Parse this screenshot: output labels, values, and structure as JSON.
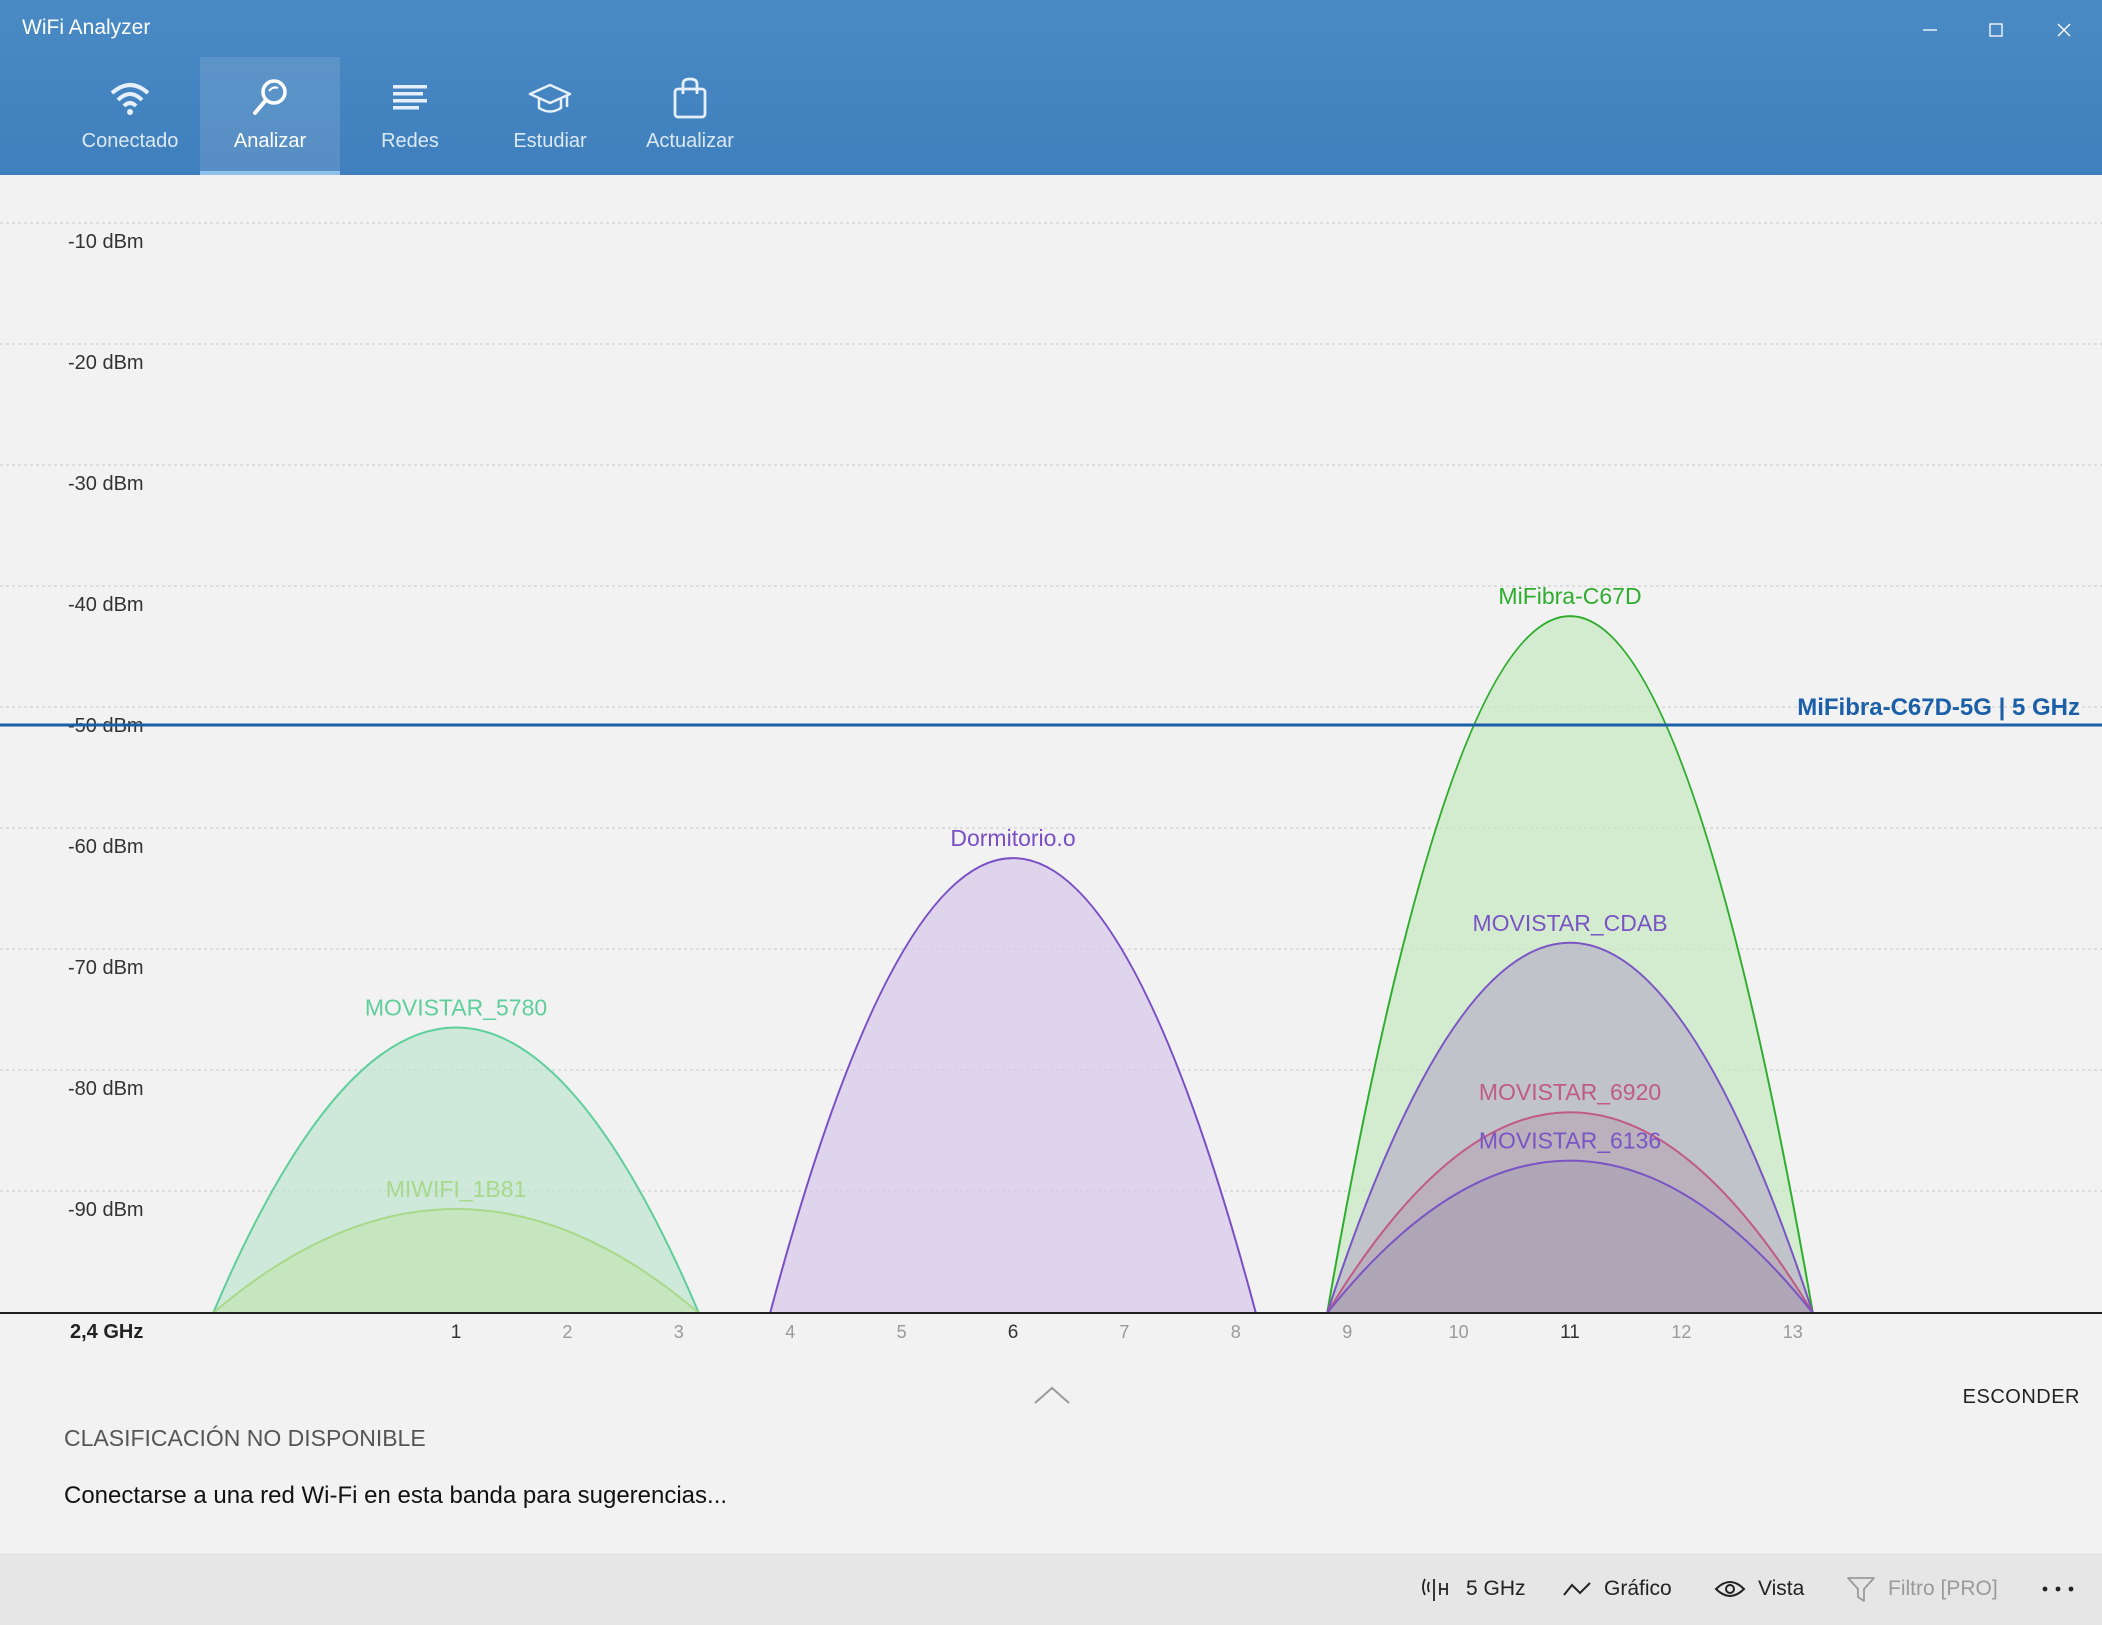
{
  "window": {
    "title": "WiFi Analyzer",
    "controls": {
      "minimize": "minimize",
      "maximize": "maximize",
      "close": "close"
    }
  },
  "tabs": [
    {
      "label": "Conectado",
      "icon": "wifi-icon",
      "active": false
    },
    {
      "label": "Analizar",
      "icon": "magnifier-icon",
      "active": true
    },
    {
      "label": "Redes",
      "icon": "list-icon",
      "active": false
    },
    {
      "label": "Estudiar",
      "icon": "graduation-cap-icon",
      "active": false
    },
    {
      "label": "Actualizar",
      "icon": "shopping-bag-icon",
      "active": false
    }
  ],
  "chart_data": {
    "type": "area",
    "band_label": "2,4 GHz",
    "y_unit": "dBm",
    "y_ticks": [
      "-10 dBm",
      "-20 dBm",
      "-30 dBm",
      "-40 dBm",
      "-50 dBm",
      "-60 dBm",
      "-70 dBm",
      "-80 dBm",
      "-90 dBm"
    ],
    "ylim": [
      -100,
      -5
    ],
    "x_ticks": [
      1,
      2,
      3,
      4,
      5,
      6,
      7,
      8,
      9,
      10,
      11,
      12,
      13
    ],
    "x_major_ticks": [
      1,
      6,
      11
    ],
    "xlim": [
      -2,
      16
    ],
    "grid": true,
    "connected_line": {
      "label": "MiFibra-C67D-5G | 5 GHz",
      "value": -50,
      "color": "#1a5fa8"
    },
    "series": [
      {
        "name": "MOVISTAR_5780",
        "channel": 1,
        "signal": -75,
        "color": "#5fcf9a",
        "fill": "#bfe3cf"
      },
      {
        "name": "MIWIFI_1B81",
        "channel": 1,
        "signal": -90,
        "color": "#a8d98a",
        "fill": "#c4e4b4"
      },
      {
        "name": "Dormitorio.o",
        "channel": 6,
        "signal": -61,
        "color": "#7a4ec4",
        "fill": "#d6c9ea"
      },
      {
        "name": "MiFibra-C67D",
        "channel": 11,
        "signal": -41,
        "color": "#2ead2e",
        "fill": "#c6e7bf"
      },
      {
        "name": "MOVISTAR_CDAB",
        "channel": 11,
        "signal": -68,
        "color": "#7a54c4",
        "fill": "#b9b4c9"
      },
      {
        "name": "MOVISTAR_6920",
        "channel": 11,
        "signal": -82,
        "color": "#c05a86",
        "fill": "#b9a9b9"
      },
      {
        "name": "MOVISTAR_6136",
        "channel": 11,
        "signal": -86,
        "color": "#7a54c4",
        "fill": "#aaa2b5"
      }
    ]
  },
  "panel": {
    "hide_label": "ESCONDER",
    "rating_title": "CLASIFICACIÓN NO DISPONIBLE",
    "suggestion": "Conectarse a una red Wi-Fi en esta banda para sugerencias..."
  },
  "bottom_bar": {
    "band": "5 GHz",
    "graph": "Gráfico",
    "view": "Vista",
    "filter": "Filtro [PRO]",
    "more": "more"
  }
}
